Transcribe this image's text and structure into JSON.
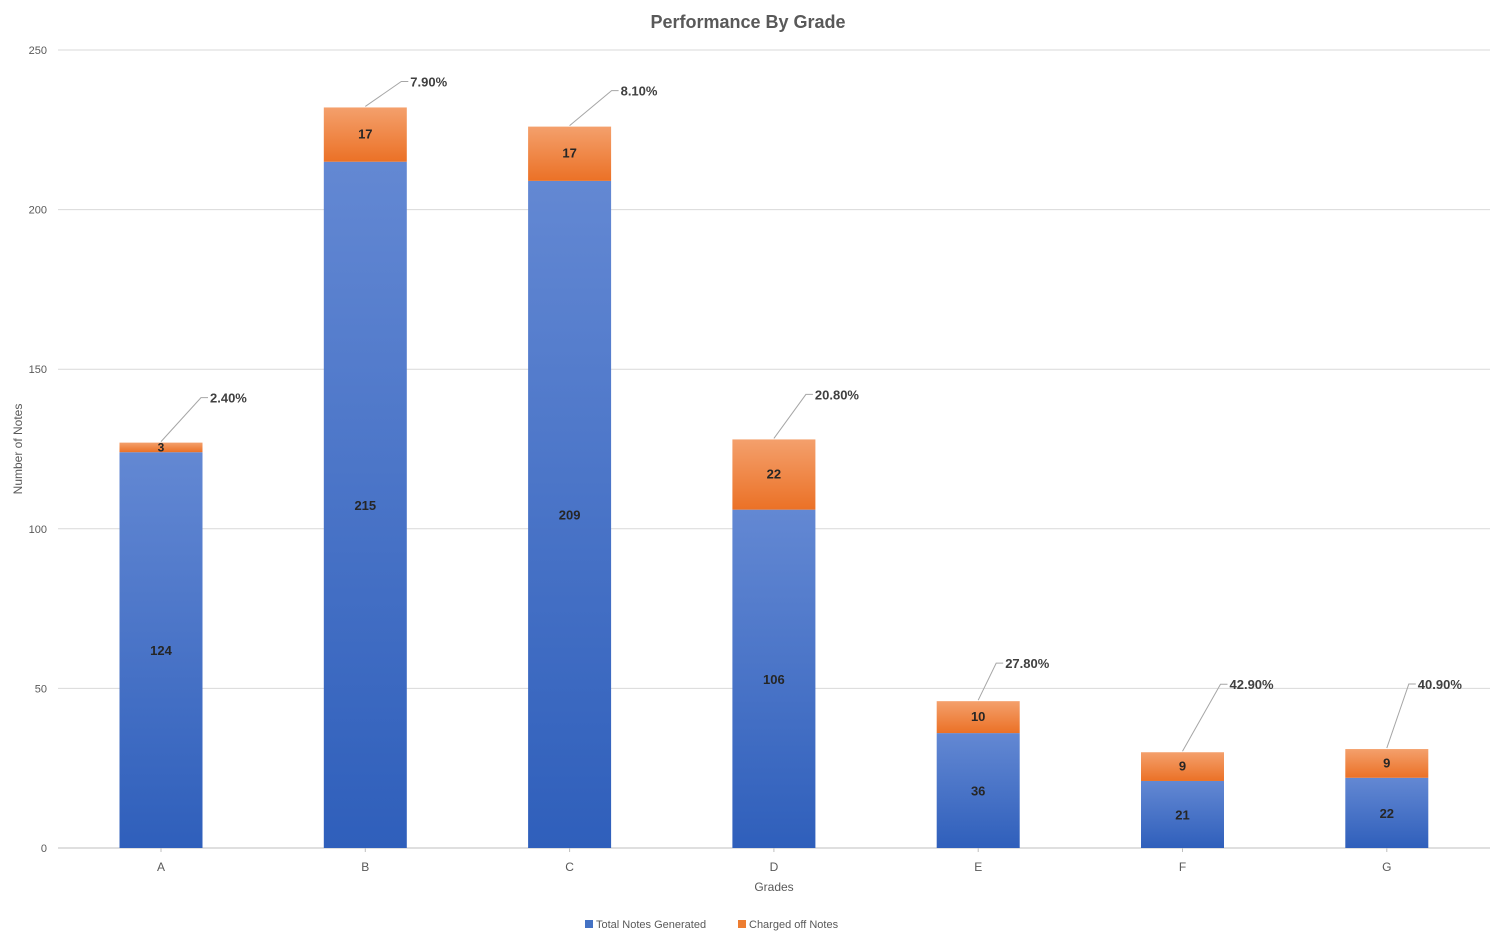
{
  "chart_data": {
    "type": "bar",
    "stacked": true,
    "title": "Performance By Grade",
    "xlabel": "Grades",
    "ylabel": "Number of Notes",
    "ylim": [
      0,
      250
    ],
    "yticks": [
      0,
      50,
      100,
      150,
      200,
      250
    ],
    "grid": true,
    "legend": "bottom",
    "categories": [
      "A",
      "B",
      "C",
      "D",
      "E",
      "F",
      "G"
    ],
    "series": [
      {
        "name": "Total Notes Generated",
        "color": "#4472C4",
        "values": [
          124,
          215,
          209,
          106,
          36,
          21,
          22
        ]
      },
      {
        "name": "Charged off Notes",
        "color": "#ED7D31",
        "values": [
          3,
          17,
          17,
          22,
          10,
          9,
          9
        ]
      }
    ],
    "annotations": [
      "2.40%",
      "7.90%",
      "8.10%",
      "20.80%",
      "27.80%",
      "42.90%",
      "40.90%"
    ]
  }
}
